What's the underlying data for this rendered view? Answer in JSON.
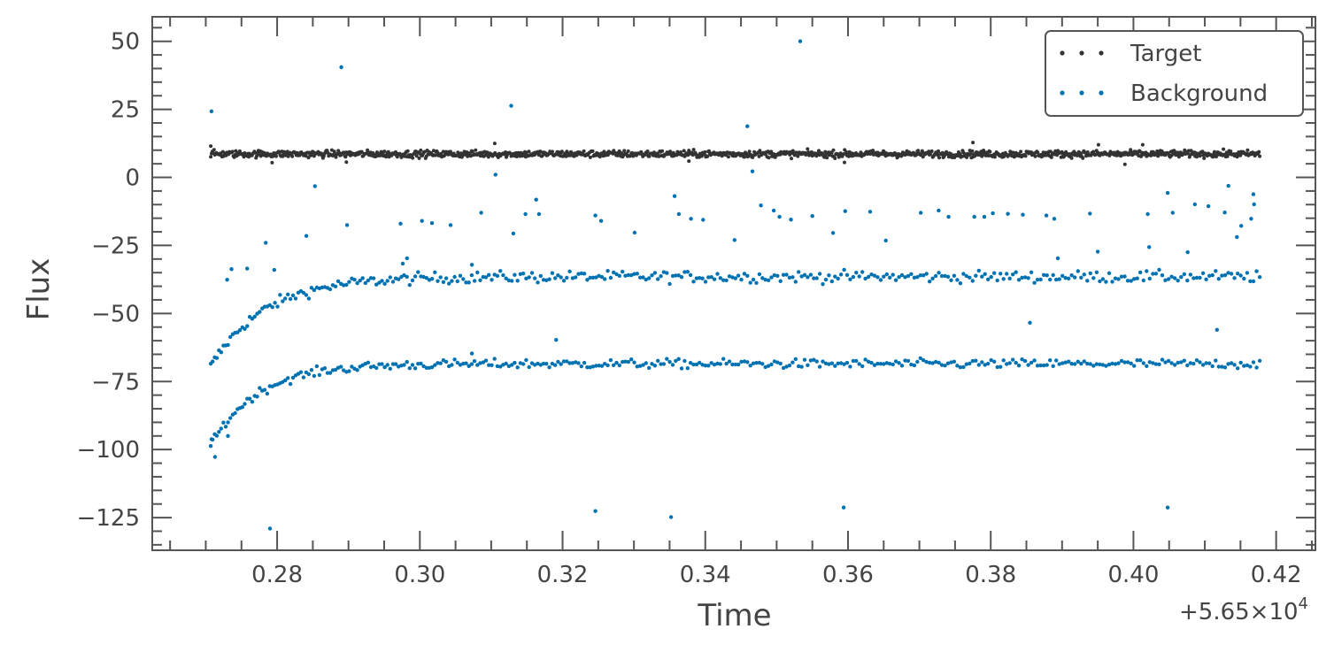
{
  "chart_data": {
    "type": "scatter",
    "title": "",
    "xlabel": "Time",
    "ylabel": "Flux",
    "x_offset_label": "+5.65×10",
    "x_offset_exponent": "4",
    "xlim": [
      0.2625,
      0.4255
    ],
    "ylim": [
      -137,
      59
    ],
    "x_ticks": [
      0.28,
      0.3,
      0.32,
      0.34,
      0.36,
      0.38,
      0.4,
      0.42
    ],
    "x_tick_labels": [
      "0.28",
      "0.30",
      "0.32",
      "0.34",
      "0.36",
      "0.38",
      "0.40",
      "0.42"
    ],
    "y_ticks": [
      50,
      25,
      0,
      -25,
      -50,
      -75,
      -100,
      -125
    ],
    "y_tick_labels": [
      "50",
      "25",
      "0",
      "−25",
      "−50",
      "−75",
      "−100",
      "−125"
    ],
    "x_range_data": [
      0.2707,
      0.4177
    ],
    "grid": false,
    "legend_position": "top-right",
    "series": [
      {
        "name": "Target",
        "color": "#333333",
        "model": {
          "kind": "constant",
          "level": 8.6,
          "scatter": 0.9
        },
        "outliers": [
          [
            0.2707,
            11.5
          ],
          [
            0.2793,
            5.4
          ],
          [
            0.2897,
            5.6
          ],
          [
            0.3105,
            12.5
          ],
          [
            0.3377,
            6.0
          ],
          [
            0.3595,
            5.5
          ],
          [
            0.3775,
            12.8
          ],
          [
            0.3951,
            12.0
          ],
          [
            0.4013,
            12.0
          ],
          [
            0.3988,
            4.8
          ]
        ]
      },
      {
        "name": "Background",
        "color": "#0072b2",
        "bands": [
          {
            "kind": "decay",
            "asymptote": -36.5,
            "amplitude": -33,
            "tau": 0.0075,
            "scatter": 1.5
          },
          {
            "kind": "decay",
            "asymptote": -68.5,
            "amplitude": -30,
            "tau": 0.0065,
            "scatter": 1.2
          }
        ],
        "outliers": [
          [
            0.2708,
            24.3
          ],
          [
            0.289,
            40.5
          ],
          [
            0.3128,
            26.3
          ],
          [
            0.3459,
            18.8
          ],
          [
            0.3533,
            50.0
          ],
          [
            0.3466,
            2.2
          ],
          [
            0.3106,
            1.0
          ],
          [
            0.2853,
            -3.2
          ],
          [
            0.2841,
            -21.5
          ],
          [
            0.2898,
            -17.5
          ],
          [
            0.2973,
            -17.0
          ],
          [
            0.3003,
            -16.0
          ],
          [
            0.3017,
            -16.8
          ],
          [
            0.3043,
            -17.5
          ],
          [
            0.3086,
            -13.0
          ],
          [
            0.3131,
            -20.6
          ],
          [
            0.3148,
            -13.5
          ],
          [
            0.3163,
            -8.2
          ],
          [
            0.3167,
            -13.5
          ],
          [
            0.3246,
            -14.0
          ],
          [
            0.3254,
            -16.0
          ],
          [
            0.3301,
            -20.3
          ],
          [
            0.3357,
            -6.9
          ],
          [
            0.3363,
            -13.5
          ],
          [
            0.338,
            -15.2
          ],
          [
            0.3397,
            -15.6
          ],
          [
            0.3441,
            -23.0
          ],
          [
            0.3478,
            -10.3
          ],
          [
            0.3496,
            -12.2
          ],
          [
            0.3504,
            -14.5
          ],
          [
            0.352,
            -15.5
          ],
          [
            0.355,
            -14.2
          ],
          [
            0.3579,
            -20.4
          ],
          [
            0.3596,
            -12.4
          ],
          [
            0.3631,
            -12.6
          ],
          [
            0.3653,
            -23.2
          ],
          [
            0.3702,
            -13.0
          ],
          [
            0.3727,
            -12.2
          ],
          [
            0.3741,
            -14.5
          ],
          [
            0.3777,
            -14.5
          ],
          [
            0.3791,
            -14.5
          ],
          [
            0.3803,
            -13.2
          ],
          [
            0.3824,
            -13.4
          ],
          [
            0.3845,
            -13.7
          ],
          [
            0.3878,
            -14.0
          ],
          [
            0.3889,
            -15.2
          ],
          [
            0.3939,
            -13.3
          ],
          [
            0.395,
            -27.3
          ],
          [
            0.4022,
            -25.6
          ],
          [
            0.402,
            -13.5
          ],
          [
            0.4048,
            -5.7
          ],
          [
            0.4055,
            -13.0
          ],
          [
            0.4086,
            -9.9
          ],
          [
            0.4105,
            -10.6
          ],
          [
            0.4128,
            -12.9
          ],
          [
            0.4133,
            -3.1
          ],
          [
            0.4145,
            -21.9
          ],
          [
            0.4151,
            -17.8
          ],
          [
            0.4165,
            -15.2
          ],
          [
            0.4169,
            -9.9
          ],
          [
            0.4168,
            -6.2
          ],
          [
            0.2784,
            -24.0
          ],
          [
            0.2758,
            -33.5
          ],
          [
            0.2736,
            -33.7
          ],
          [
            0.273,
            -37.6
          ],
          [
            0.2796,
            -34.0
          ],
          [
            0.2976,
            -31.7
          ],
          [
            0.2982,
            -29.7
          ],
          [
            0.3073,
            -32.1
          ],
          [
            0.3894,
            -29.7
          ],
          [
            0.4076,
            -27.5
          ],
          [
            0.3855,
            -53.4
          ],
          [
            0.4117,
            -56.0
          ],
          [
            0.3191,
            -59.7
          ],
          [
            0.3073,
            -64.7
          ],
          [
            0.2731,
            -95.0
          ],
          [
            0.2708,
            -96.2
          ],
          [
            0.2713,
            -102.7
          ],
          [
            0.279,
            -129.0
          ],
          [
            0.3246,
            -122.6
          ],
          [
            0.3352,
            -124.8
          ],
          [
            0.3594,
            -121.3
          ],
          [
            0.4048,
            -121.3
          ]
        ]
      }
    ]
  }
}
